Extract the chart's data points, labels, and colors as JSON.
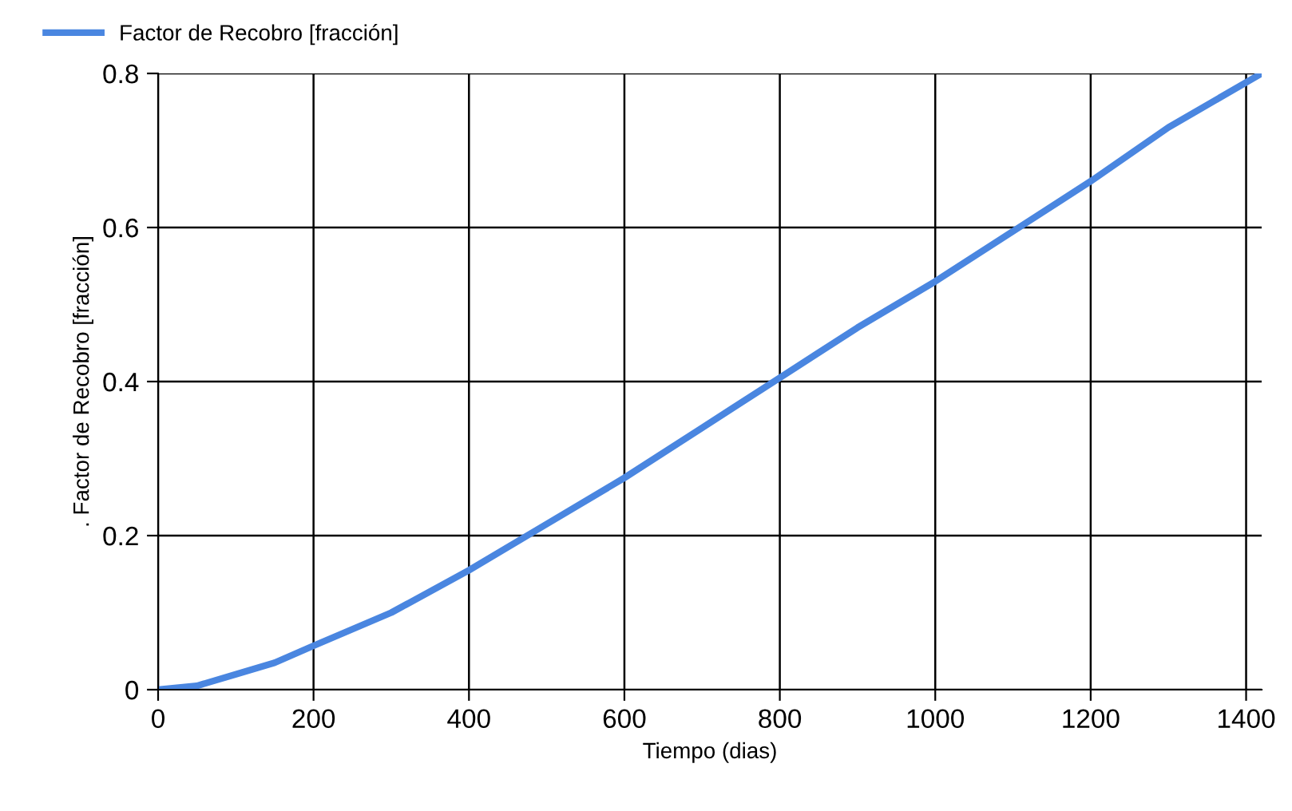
{
  "chart_data": {
    "type": "line",
    "xlabel": "Tiempo (dias)",
    "ylabel": ". Factor de Recobro [fracción]",
    "x": [
      0,
      50,
      100,
      150,
      200,
      300,
      400,
      500,
      600,
      700,
      800,
      900,
      1000,
      1100,
      1200,
      1300,
      1420
    ],
    "series": [
      {
        "name": "Factor de Recobro [fracción]",
        "color": "#4a86e0",
        "values": [
          0,
          0.005,
          0.02,
          0.035,
          0.057,
          0.1,
          0.155,
          0.215,
          0.275,
          0.34,
          0.405,
          0.47,
          0.53,
          0.595,
          0.66,
          0.73,
          0.8
        ]
      }
    ],
    "xlim": [
      0,
      1420
    ],
    "ylim": [
      0,
      0.8
    ],
    "xticks": [
      0,
      200,
      400,
      600,
      800,
      1000,
      1200,
      1400
    ],
    "yticks": [
      0,
      0.2,
      0.4,
      0.6,
      0.8
    ],
    "grid": true,
    "legend": "top left",
    "marker": "none",
    "line_style": "solid"
  }
}
